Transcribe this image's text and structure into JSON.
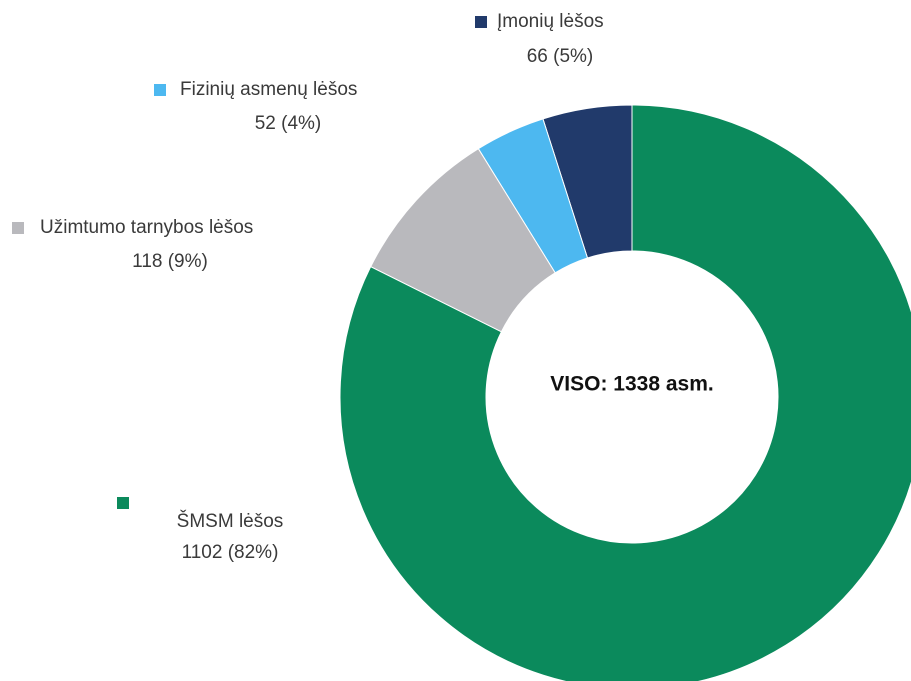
{
  "chart_data": {
    "type": "donut",
    "categories": [
      "ŠMSM lėšos",
      "Užimtumo tarnybos lėšos",
      "Fizinių asmenų lėšos",
      "Įmonių lėšos"
    ],
    "values": [
      1102,
      118,
      52,
      66
    ],
    "value_labels": [
      "1102 (82%)",
      "118 (9%)",
      "52 (4%)",
      "66 (5%)"
    ],
    "colors": [
      "#0b8a5c",
      "#b9b9bd",
      "#4db8f0",
      "#213a6b"
    ],
    "center_label": "VISO: 1338 asm."
  }
}
